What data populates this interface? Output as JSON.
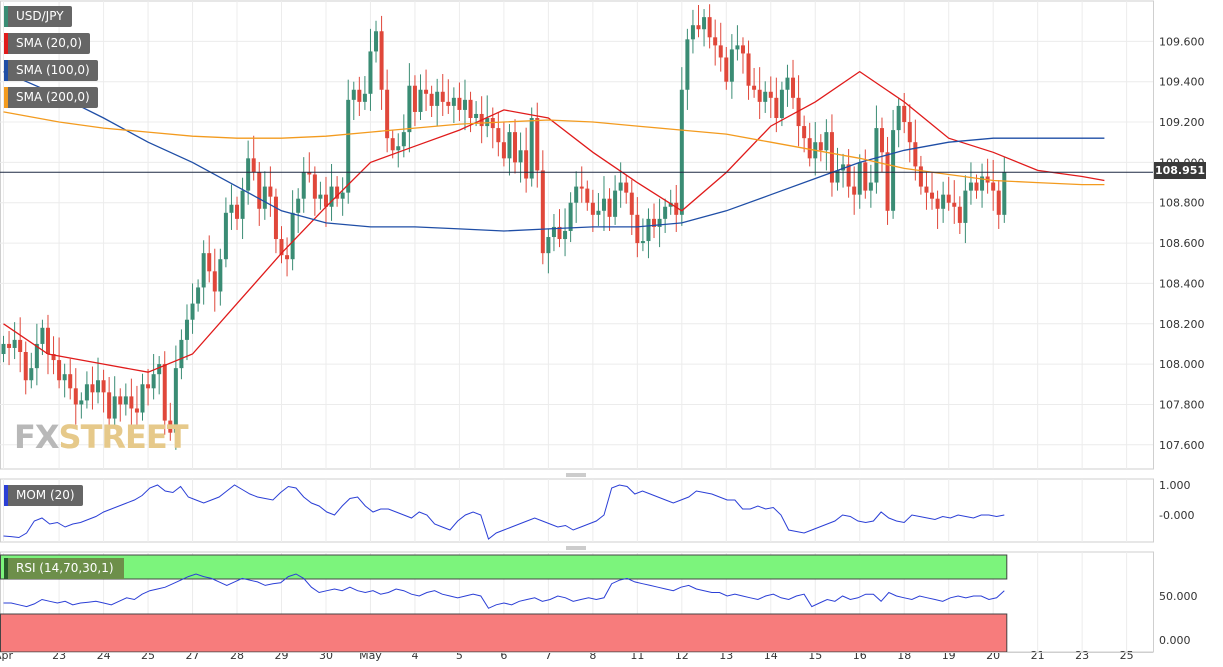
{
  "chart_data": {
    "type": "candlestick",
    "symbol": "USD/JPY",
    "current_price": "108.951",
    "ylim": [
      107.48,
      109.8
    ],
    "y_ticks": [
      "107.600",
      "107.800",
      "108.000",
      "108.200",
      "108.400",
      "108.600",
      "108.800",
      "109.000",
      "109.200",
      "109.400",
      "109.600"
    ],
    "x_ticks": [
      {
        "label": "Apr",
        "i": 0
      },
      {
        "label": "23",
        "i": 10
      },
      {
        "label": "24",
        "i": 18
      },
      {
        "label": "25",
        "i": 26
      },
      {
        "label": "27",
        "i": 34
      },
      {
        "label": "28",
        "i": 42
      },
      {
        "label": "29",
        "i": 50
      },
      {
        "label": "30",
        "i": 58
      },
      {
        "label": "May",
        "i": 66
      },
      {
        "label": "4",
        "i": 74
      },
      {
        "label": "5",
        "i": 82
      },
      {
        "label": "6",
        "i": 90
      },
      {
        "label": "7",
        "i": 98
      },
      {
        "label": "8",
        "i": 106
      },
      {
        "label": "11",
        "i": 114
      },
      {
        "label": "12",
        "i": 122
      },
      {
        "label": "13",
        "i": 130
      },
      {
        "label": "14",
        "i": 138
      },
      {
        "label": "15",
        "i": 146
      },
      {
        "label": "16",
        "i": 154
      },
      {
        "label": "18",
        "i": 162
      },
      {
        "label": "19",
        "i": 170
      },
      {
        "label": "20",
        "i": 178
      },
      {
        "label": "21",
        "i": 186
      },
      {
        "label": "23",
        "i": 194
      },
      {
        "label": "25",
        "i": 202
      }
    ],
    "candles_close": [
      108.1,
      108.08,
      108.12,
      108.06,
      107.92,
      107.98,
      108.1,
      108.18,
      108.05,
      108.02,
      107.92,
      107.95,
      107.88,
      107.8,
      107.82,
      107.9,
      107.86,
      107.92,
      107.86,
      107.73,
      107.84,
      107.8,
      107.84,
      107.78,
      107.76,
      107.9,
      107.88,
      107.95,
      108.0,
      107.72,
      107.66,
      107.98,
      108.12,
      108.22,
      108.3,
      108.38,
      108.55,
      108.46,
      108.36,
      108.52,
      108.75,
      108.79,
      108.72,
      108.86,
      109.02,
      108.95,
      108.77,
      108.88,
      108.83,
      108.62,
      108.54,
      108.52,
      108.75,
      108.82,
      108.95,
      108.94,
      108.82,
      108.84,
      108.78,
      108.88,
      108.82,
      108.85,
      109.31,
      109.36,
      109.3,
      109.34,
      109.55,
      109.65,
      109.36,
      109.12,
      109.06,
      109.08,
      109.15,
      109.38,
      109.25,
      109.36,
      109.34,
      109.28,
      109.35,
      109.3,
      109.28,
      109.32,
      109.26,
      109.31,
      109.22,
      109.24,
      109.18,
      109.22,
      109.17,
      109.1,
      109.02,
      109.15,
      109.0,
      109.06,
      108.92,
      109.22,
      108.96,
      108.55,
      108.63,
      108.68,
      108.62,
      108.66,
      108.8,
      108.88,
      108.87,
      108.8,
      108.74,
      108.76,
      108.82,
      108.73,
      108.86,
      108.9,
      108.85,
      108.74,
      108.6,
      108.61,
      108.72,
      108.68,
      108.72,
      108.78,
      108.8,
      108.74,
      109.36,
      109.61,
      109.68,
      109.66,
      109.72,
      109.62,
      109.58,
      109.52,
      109.4,
      109.56,
      109.58,
      109.54,
      109.38,
      109.36,
      109.3,
      109.35,
      109.32,
      109.22,
      109.36,
      109.42,
      109.32,
      109.18,
      109.12,
      109.02,
      109.1,
      109.06,
      109.15,
      108.9,
      108.96,
      108.99,
      108.88,
      108.84,
      109.0,
      108.86,
      108.9,
      109.17,
      109.05,
      108.76,
      109.16,
      109.28,
      109.2,
      109.1,
      108.98,
      108.88,
      108.85,
      108.82,
      108.77,
      108.84,
      108.8,
      108.78,
      108.7,
      108.86,
      108.9,
      108.86,
      108.93,
      108.9,
      108.86,
      108.74,
      108.951
    ],
    "series": [
      {
        "name": "SMA (20,0)",
        "color": "#e01b1b",
        "points": [
          [
            0,
            108.2
          ],
          [
            8,
            108.05
          ],
          [
            18,
            108.0
          ],
          [
            26,
            107.96
          ],
          [
            34,
            108.05
          ],
          [
            42,
            108.3
          ],
          [
            50,
            108.55
          ],
          [
            58,
            108.78
          ],
          [
            66,
            109.0
          ],
          [
            74,
            109.08
          ],
          [
            82,
            109.16
          ],
          [
            90,
            109.26
          ],
          [
            98,
            109.22
          ],
          [
            106,
            109.05
          ],
          [
            114,
            108.9
          ],
          [
            122,
            108.76
          ],
          [
            130,
            108.95
          ],
          [
            138,
            109.18
          ],
          [
            146,
            109.3
          ],
          [
            154,
            109.45
          ],
          [
            162,
            109.3
          ],
          [
            170,
            109.12
          ],
          [
            178,
            109.05
          ],
          [
            186,
            108.96
          ],
          [
            194,
            108.93
          ],
          [
            198,
            108.91
          ]
        ]
      },
      {
        "name": "SMA (100,0)",
        "color": "#1f4ea6",
        "points": [
          [
            0,
            109.45
          ],
          [
            10,
            109.33
          ],
          [
            18,
            109.22
          ],
          [
            26,
            109.1
          ],
          [
            34,
            109.0
          ],
          [
            42,
            108.88
          ],
          [
            50,
            108.76
          ],
          [
            58,
            108.7
          ],
          [
            66,
            108.68
          ],
          [
            74,
            108.68
          ],
          [
            82,
            108.67
          ],
          [
            90,
            108.66
          ],
          [
            98,
            108.67
          ],
          [
            106,
            108.68
          ],
          [
            114,
            108.68
          ],
          [
            122,
            108.7
          ],
          [
            130,
            108.76
          ],
          [
            138,
            108.84
          ],
          [
            146,
            108.92
          ],
          [
            154,
            109.0
          ],
          [
            162,
            109.06
          ],
          [
            170,
            109.1
          ],
          [
            178,
            109.12
          ],
          [
            186,
            109.12
          ],
          [
            194,
            109.12
          ],
          [
            198,
            109.12
          ]
        ]
      },
      {
        "name": "SMA (200,0)",
        "color": "#f39b1f",
        "points": [
          [
            0,
            109.25
          ],
          [
            10,
            109.2
          ],
          [
            18,
            109.17
          ],
          [
            26,
            109.15
          ],
          [
            34,
            109.13
          ],
          [
            42,
            109.12
          ],
          [
            50,
            109.12
          ],
          [
            58,
            109.13
          ],
          [
            66,
            109.15
          ],
          [
            74,
            109.17
          ],
          [
            82,
            109.19
          ],
          [
            90,
            109.2
          ],
          [
            98,
            109.21
          ],
          [
            106,
            109.2
          ],
          [
            114,
            109.18
          ],
          [
            122,
            109.16
          ],
          [
            130,
            109.14
          ],
          [
            138,
            109.1
          ],
          [
            146,
            109.06
          ],
          [
            154,
            109.02
          ],
          [
            162,
            108.97
          ],
          [
            170,
            108.94
          ],
          [
            178,
            108.91
          ],
          [
            186,
            108.9
          ],
          [
            194,
            108.89
          ],
          [
            198,
            108.89
          ]
        ]
      }
    ],
    "mom": {
      "label": "MOM (20)",
      "color": "#2b3fd6",
      "y_ticks": [
        "1.000",
        "-0.000"
      ],
      "ylim": [
        -0.9,
        1.2
      ],
      "values": [
        -0.7,
        -0.72,
        -0.75,
        -0.6,
        -0.2,
        -0.1,
        -0.3,
        -0.25,
        -0.4,
        -0.3,
        -0.25,
        -0.15,
        -0.05,
        0.1,
        0.2,
        0.3,
        0.4,
        0.5,
        0.65,
        0.9,
        1.0,
        0.8,
        0.75,
        0.95,
        0.6,
        0.5,
        0.4,
        0.5,
        0.6,
        0.8,
        1.0,
        0.85,
        0.7,
        0.6,
        0.55,
        0.5,
        0.75,
        0.95,
        0.9,
        0.6,
        0.4,
        0.3,
        0.1,
        0.0,
        0.3,
        0.55,
        0.6,
        0.3,
        0.1,
        0.2,
        0.2,
        0.1,
        0.0,
        -0.1,
        0.1,
        0.0,
        -0.3,
        -0.4,
        -0.5,
        -0.2,
        0.0,
        0.1,
        0.0,
        -0.8,
        -0.6,
        -0.5,
        -0.4,
        -0.3,
        -0.2,
        -0.1,
        -0.2,
        -0.3,
        -0.4,
        -0.35,
        -0.5,
        -0.4,
        -0.3,
        -0.2,
        0.0,
        0.9,
        1.0,
        0.95,
        0.7,
        0.8,
        0.7,
        0.6,
        0.5,
        0.4,
        0.5,
        0.6,
        0.8,
        0.75,
        0.7,
        0.6,
        0.5,
        0.5,
        0.2,
        0.2,
        0.3,
        0.2,
        0.25,
        0.0,
        -0.5,
        -0.55,
        -0.6,
        -0.5,
        -0.4,
        -0.3,
        -0.2,
        0.0,
        -0.05,
        -0.2,
        -0.25,
        -0.2,
        0.1,
        -0.1,
        -0.2,
        -0.25,
        0.0,
        -0.05,
        -0.1,
        -0.15,
        -0.05,
        -0.1,
        0.0,
        -0.05,
        -0.1,
        0.0,
        0.0,
        -0.05,
        0.0
      ]
    },
    "rsi": {
      "label": "RSI (14,70,30,1)",
      "color": "#2b3fd6",
      "y_ticks": [
        "50.000",
        "0.000"
      ],
      "ylim": [
        0,
        100
      ],
      "upper_zone_color": "#7cf47c",
      "lower_zone_color": "#f77c7c",
      "values": [
        42,
        42,
        40,
        38,
        41,
        46,
        44,
        42,
        44,
        40,
        42,
        43,
        44,
        42,
        40,
        44,
        48,
        46,
        52,
        56,
        58,
        60,
        64,
        68,
        72,
        75,
        72,
        70,
        66,
        62,
        66,
        70,
        68,
        66,
        62,
        64,
        65,
        72,
        75,
        70,
        60,
        54,
        56,
        58,
        56,
        60,
        56,
        54,
        56,
        52,
        54,
        58,
        56,
        52,
        50,
        54,
        56,
        52,
        50,
        48,
        50,
        52,
        50,
        36,
        40,
        42,
        40,
        44,
        46,
        48,
        44,
        46,
        50,
        48,
        44,
        46,
        48,
        46,
        48,
        64,
        68,
        70,
        66,
        64,
        62,
        60,
        58,
        56,
        60,
        62,
        58,
        56,
        54,
        54,
        50,
        52,
        50,
        48,
        46,
        50,
        52,
        48,
        46,
        50,
        52,
        38,
        42,
        46,
        44,
        50,
        46,
        48,
        52,
        52,
        44,
        54,
        50,
        48,
        46,
        50,
        48,
        46,
        44,
        48,
        50,
        48,
        50,
        50,
        46,
        48,
        56
      ]
    },
    "panes": {
      "main": {
        "top": 1,
        "bottom": 469
      },
      "mom": {
        "top": 479,
        "bottom": 542
      },
      "rsi": {
        "top": 552,
        "bottom": 652
      }
    }
  },
  "legend": [
    {
      "label": "USD/JPY",
      "color": "#3a8c74"
    },
    {
      "label": "SMA (20,0)",
      "color": "#e01b1b"
    },
    {
      "label": "SMA (100,0)",
      "color": "#1f4ea6"
    },
    {
      "label": "SMA (200,0)",
      "color": "#f39b1f"
    }
  ],
  "watermark": {
    "part1": "FX",
    "part2": "STREET"
  }
}
